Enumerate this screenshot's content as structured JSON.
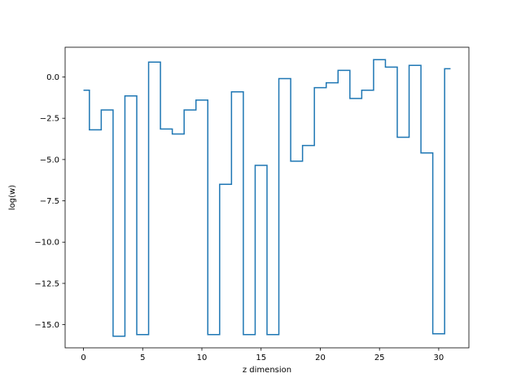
{
  "chart_data": {
    "type": "line",
    "drawstyle": "steps-mid",
    "title": "",
    "xlabel": "z dimension",
    "ylabel": "log(w)",
    "xlim": [
      -1.55,
      32.55
    ],
    "ylim": [
      -16.4,
      1.8
    ],
    "xticks": [
      0,
      5,
      10,
      15,
      20,
      25,
      30
    ],
    "xtick_labels": [
      "0",
      "5",
      "10",
      "15",
      "20",
      "25",
      "30"
    ],
    "yticks": [
      0.0,
      -2.5,
      -5.0,
      -7.5,
      -10.0,
      -12.5,
      -15.0
    ],
    "ytick_labels": [
      "0.0",
      "−2.5",
      "−5.0",
      "−7.5",
      "−10.0",
      "−12.5",
      "−15.0"
    ],
    "grid": false,
    "series_color": "#1f77b4",
    "series": [
      {
        "x": [
          0,
          1,
          2,
          3,
          4,
          5,
          6,
          7,
          8,
          9,
          10,
          11,
          12,
          13,
          14,
          15,
          16,
          17,
          18,
          19,
          20,
          21,
          22,
          23,
          24,
          25,
          26,
          27,
          28,
          29,
          30,
          31
        ],
        "values": [
          -0.8,
          -3.2,
          -2.0,
          -15.7,
          -1.15,
          -15.6,
          0.9,
          -3.15,
          -3.45,
          -2.0,
          -1.4,
          -15.6,
          -6.5,
          -0.9,
          -15.6,
          -5.35,
          -15.6,
          -0.1,
          -5.1,
          -4.15,
          -0.65,
          -0.35,
          0.4,
          -1.3,
          -0.8,
          1.05,
          0.6,
          -3.65,
          0.7,
          -4.6,
          -15.55,
          0.5
        ]
      }
    ]
  }
}
